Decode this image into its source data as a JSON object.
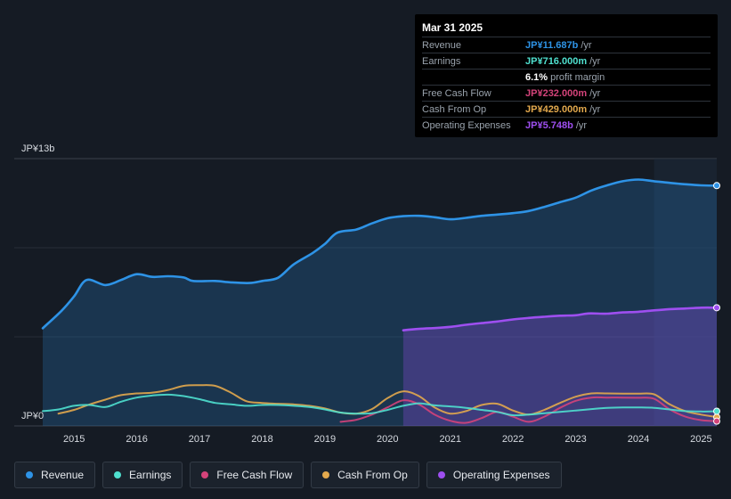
{
  "tooltip": {
    "date": "Mar 31 2025",
    "rows": [
      {
        "label": "Revenue",
        "value": "JP¥11.687b",
        "unit": "/yr",
        "color": "#2e93e6"
      },
      {
        "label": "Earnings",
        "value": "JP¥716.000m",
        "unit": "/yr",
        "color": "#4fe0cf"
      },
      {
        "label": "",
        "value": "6.1%",
        "unit": "profit margin",
        "color": "#ffffff"
      },
      {
        "label": "Free Cash Flow",
        "value": "JP¥232.000m",
        "unit": "/yr",
        "color": "#d4437a"
      },
      {
        "label": "Cash From Op",
        "value": "JP¥429.000m",
        "unit": "/yr",
        "color": "#e3a94d"
      },
      {
        "label": "Operating Expenses",
        "value": "JP¥5.748b",
        "unit": "/yr",
        "color": "#9e4ff0"
      }
    ]
  },
  "legend": [
    {
      "label": "Revenue",
      "color": "#2e93e6"
    },
    {
      "label": "Earnings",
      "color": "#4fe0cf"
    },
    {
      "label": "Free Cash Flow",
      "color": "#d4437a"
    },
    {
      "label": "Cash From Op",
      "color": "#e3a94d"
    },
    {
      "label": "Operating Expenses",
      "color": "#9e4ff0"
    }
  ],
  "chart_data": {
    "type": "area",
    "y_top_label": "JP¥13b",
    "y_bottom_label": "JP¥0",
    "ylim": [
      0,
      13
    ],
    "xlim": [
      2014.5,
      2025.25
    ],
    "x_ticks": [
      2015,
      2016,
      2017,
      2018,
      2019,
      2020,
      2021,
      2022,
      2023,
      2024,
      2025
    ],
    "x_tick_labels": [
      "2015",
      "2016",
      "2017",
      "2018",
      "2019",
      "2020",
      "2021",
      "2022",
      "2023",
      "2024",
      "2025"
    ],
    "highlight_from": 2024.25,
    "series": [
      {
        "name": "Revenue",
        "color": "#2e93e6",
        "fill": true,
        "points": [
          [
            2014.5,
            4.75
          ],
          [
            2014.8,
            5.6
          ],
          [
            2015.0,
            6.3
          ],
          [
            2015.2,
            7.1
          ],
          [
            2015.5,
            6.85
          ],
          [
            2015.75,
            7.1
          ],
          [
            2016.0,
            7.38
          ],
          [
            2016.25,
            7.25
          ],
          [
            2016.5,
            7.28
          ],
          [
            2016.75,
            7.22
          ],
          [
            2016.9,
            7.05
          ],
          [
            2017.25,
            7.05
          ],
          [
            2017.5,
            6.98
          ],
          [
            2017.8,
            6.95
          ],
          [
            2018.0,
            7.05
          ],
          [
            2018.25,
            7.2
          ],
          [
            2018.5,
            7.85
          ],
          [
            2018.8,
            8.4
          ],
          [
            2019.0,
            8.85
          ],
          [
            2019.2,
            9.4
          ],
          [
            2019.5,
            9.55
          ],
          [
            2019.75,
            9.85
          ],
          [
            2020.0,
            10.1
          ],
          [
            2020.25,
            10.2
          ],
          [
            2020.5,
            10.22
          ],
          [
            2020.75,
            10.15
          ],
          [
            2021.0,
            10.05
          ],
          [
            2021.25,
            10.12
          ],
          [
            2021.5,
            10.22
          ],
          [
            2021.75,
            10.28
          ],
          [
            2022.0,
            10.35
          ],
          [
            2022.25,
            10.45
          ],
          [
            2022.5,
            10.65
          ],
          [
            2022.75,
            10.88
          ],
          [
            2023.0,
            11.1
          ],
          [
            2023.25,
            11.45
          ],
          [
            2023.5,
            11.7
          ],
          [
            2023.75,
            11.9
          ],
          [
            2024.0,
            11.98
          ],
          [
            2024.25,
            11.9
          ],
          [
            2024.5,
            11.82
          ],
          [
            2024.75,
            11.75
          ],
          [
            2025.0,
            11.7
          ],
          [
            2025.25,
            11.687
          ]
        ]
      },
      {
        "name": "Operating Expenses",
        "color": "#9e4ff0",
        "fill": true,
        "points": [
          [
            2020.25,
            4.65
          ],
          [
            2020.5,
            4.72
          ],
          [
            2020.75,
            4.76
          ],
          [
            2021.0,
            4.82
          ],
          [
            2021.25,
            4.92
          ],
          [
            2021.5,
            5.0
          ],
          [
            2021.75,
            5.08
          ],
          [
            2022.0,
            5.18
          ],
          [
            2022.25,
            5.25
          ],
          [
            2022.5,
            5.31
          ],
          [
            2022.75,
            5.36
          ],
          [
            2023.0,
            5.38
          ],
          [
            2023.2,
            5.47
          ],
          [
            2023.5,
            5.46
          ],
          [
            2023.75,
            5.52
          ],
          [
            2024.0,
            5.55
          ],
          [
            2024.25,
            5.62
          ],
          [
            2024.5,
            5.68
          ],
          [
            2024.75,
            5.71
          ],
          [
            2025.0,
            5.75
          ],
          [
            2025.25,
            5.748
          ]
        ]
      },
      {
        "name": "Cash From Op",
        "color": "#e3a94d",
        "fill": false,
        "points": [
          [
            2014.75,
            0.6
          ],
          [
            2015.0,
            0.78
          ],
          [
            2015.25,
            1.05
          ],
          [
            2015.5,
            1.28
          ],
          [
            2015.75,
            1.5
          ],
          [
            2016.0,
            1.58
          ],
          [
            2016.25,
            1.62
          ],
          [
            2016.5,
            1.75
          ],
          [
            2016.75,
            1.95
          ],
          [
            2017.0,
            1.98
          ],
          [
            2017.25,
            1.95
          ],
          [
            2017.5,
            1.62
          ],
          [
            2017.75,
            1.2
          ],
          [
            2018.0,
            1.12
          ],
          [
            2018.25,
            1.08
          ],
          [
            2018.5,
            1.05
          ],
          [
            2018.75,
            0.98
          ],
          [
            2019.0,
            0.85
          ],
          [
            2019.25,
            0.65
          ],
          [
            2019.5,
            0.6
          ],
          [
            2019.75,
            0.82
          ],
          [
            2020.0,
            1.35
          ],
          [
            2020.25,
            1.68
          ],
          [
            2020.5,
            1.45
          ],
          [
            2020.75,
            0.9
          ],
          [
            2021.0,
            0.6
          ],
          [
            2021.25,
            0.72
          ],
          [
            2021.5,
            1.02
          ],
          [
            2021.75,
            1.08
          ],
          [
            2022.0,
            0.75
          ],
          [
            2022.25,
            0.55
          ],
          [
            2022.5,
            0.78
          ],
          [
            2022.75,
            1.12
          ],
          [
            2023.0,
            1.42
          ],
          [
            2023.25,
            1.58
          ],
          [
            2023.5,
            1.58
          ],
          [
            2023.75,
            1.57
          ],
          [
            2024.0,
            1.57
          ],
          [
            2024.25,
            1.54
          ],
          [
            2024.5,
            1.05
          ],
          [
            2024.75,
            0.72
          ],
          [
            2025.0,
            0.55
          ],
          [
            2025.25,
            0.429
          ]
        ]
      },
      {
        "name": "Free Cash Flow",
        "color": "#d4437a",
        "fill": false,
        "points": [
          [
            2019.25,
            0.2
          ],
          [
            2019.5,
            0.3
          ],
          [
            2019.75,
            0.55
          ],
          [
            2020.0,
            0.9
          ],
          [
            2020.25,
            1.25
          ],
          [
            2020.5,
            1.05
          ],
          [
            2020.75,
            0.55
          ],
          [
            2021.0,
            0.25
          ],
          [
            2021.25,
            0.15
          ],
          [
            2021.5,
            0.38
          ],
          [
            2021.75,
            0.68
          ],
          [
            2022.0,
            0.45
          ],
          [
            2022.25,
            0.2
          ],
          [
            2022.5,
            0.45
          ],
          [
            2022.75,
            0.88
          ],
          [
            2023.0,
            1.22
          ],
          [
            2023.25,
            1.38
          ],
          [
            2023.5,
            1.38
          ],
          [
            2023.75,
            1.38
          ],
          [
            2024.0,
            1.37
          ],
          [
            2024.25,
            1.32
          ],
          [
            2024.5,
            0.8
          ],
          [
            2024.75,
            0.45
          ],
          [
            2025.0,
            0.28
          ],
          [
            2025.25,
            0.232
          ]
        ]
      },
      {
        "name": "Earnings",
        "color": "#4fe0cf",
        "fill": false,
        "points": [
          [
            2014.5,
            0.72
          ],
          [
            2014.75,
            0.8
          ],
          [
            2015.0,
            0.98
          ],
          [
            2015.25,
            1.02
          ],
          [
            2015.5,
            0.92
          ],
          [
            2015.75,
            1.18
          ],
          [
            2016.0,
            1.38
          ],
          [
            2016.25,
            1.48
          ],
          [
            2016.5,
            1.52
          ],
          [
            2016.75,
            1.45
          ],
          [
            2017.0,
            1.3
          ],
          [
            2017.25,
            1.12
          ],
          [
            2017.5,
            1.05
          ],
          [
            2017.75,
            0.98
          ],
          [
            2018.0,
            1.02
          ],
          [
            2018.25,
            1.02
          ],
          [
            2018.5,
            0.98
          ],
          [
            2018.75,
            0.92
          ],
          [
            2019.0,
            0.8
          ],
          [
            2019.25,
            0.65
          ],
          [
            2019.5,
            0.6
          ],
          [
            2019.75,
            0.62
          ],
          [
            2020.0,
            0.78
          ],
          [
            2020.25,
            0.98
          ],
          [
            2020.5,
            1.1
          ],
          [
            2020.75,
            1.0
          ],
          [
            2021.0,
            0.95
          ],
          [
            2021.25,
            0.88
          ],
          [
            2021.5,
            0.78
          ],
          [
            2021.75,
            0.68
          ],
          [
            2022.0,
            0.52
          ],
          [
            2022.25,
            0.55
          ],
          [
            2022.5,
            0.62
          ],
          [
            2022.75,
            0.68
          ],
          [
            2023.0,
            0.75
          ],
          [
            2023.25,
            0.82
          ],
          [
            2023.5,
            0.88
          ],
          [
            2023.75,
            0.9
          ],
          [
            2024.0,
            0.9
          ],
          [
            2024.25,
            0.88
          ],
          [
            2024.5,
            0.8
          ],
          [
            2024.75,
            0.72
          ],
          [
            2025.0,
            0.7
          ],
          [
            2025.25,
            0.716
          ]
        ]
      }
    ]
  }
}
